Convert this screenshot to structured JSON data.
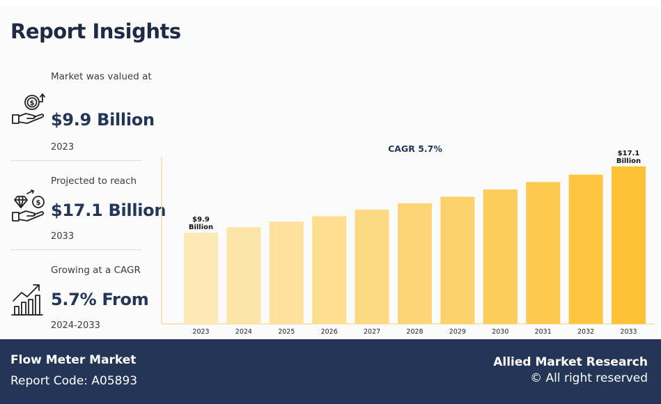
{
  "header": {
    "title": "Report Insights"
  },
  "stats": [
    {
      "label": "Market was valued at",
      "value": "$9.9 Billion",
      "sub": "2023",
      "icon": "money-hand-icon"
    },
    {
      "label": "Projected to reach",
      "value": "$17.1 Billion",
      "sub": "2033",
      "icon": "diamond-coin-hand-icon"
    },
    {
      "label": "Growing at a CAGR",
      "value": "5.7% From",
      "sub": "2024-2033",
      "icon": "growth-bar-chart-icon"
    }
  ],
  "chart_data": {
    "type": "bar",
    "title": "CAGR 5.7%",
    "categories": [
      "2023",
      "2024",
      "2025",
      "2026",
      "2027",
      "2028",
      "2029",
      "2030",
      "2031",
      "2032",
      "2033"
    ],
    "values": [
      9.9,
      10.5,
      11.1,
      11.7,
      12.4,
      13.1,
      13.8,
      14.6,
      15.4,
      16.2,
      17.1
    ],
    "ylim": [
      0,
      18
    ],
    "data_labels": [
      {
        "index": 0,
        "line1": "$9.9",
        "line2": "Billion"
      },
      {
        "index": 10,
        "line1": "$17.1",
        "line2": "Billion"
      }
    ],
    "colors": [
      "#fde9b6",
      "#fde5aa",
      "#fde19d",
      "#fddd90",
      "#fdd983",
      "#fdd576",
      "#fdd169",
      "#fdcd5c",
      "#fdc94f",
      "#fdc542",
      "#fdc135"
    ],
    "axis_color": "#f3e0a0"
  },
  "footer": {
    "market": "Flow Meter Market",
    "code": "Report Code: A05893",
    "brand": "Allied Market Research",
    "rights": "© All right reserved"
  }
}
